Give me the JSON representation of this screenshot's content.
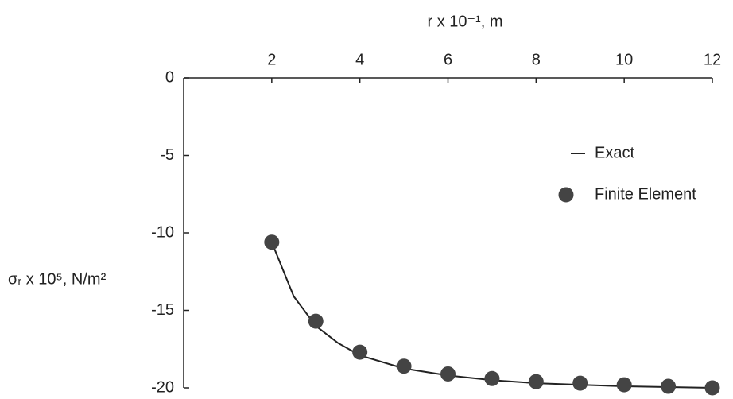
{
  "chart_data": {
    "type": "line",
    "x_label": "r x 10⁻¹, m",
    "y_label": "σᵣ x 10⁵, N/m²",
    "xlim": [
      0,
      12
    ],
    "xticks": [
      2,
      4,
      6,
      8,
      10,
      12
    ],
    "ylim": [
      -20,
      0
    ],
    "yticks": [
      0,
      -5,
      -10,
      -15,
      -20
    ],
    "series": [
      {
        "name": "Exact",
        "color": "#222222",
        "style": "line",
        "x": [
          2,
          2.5,
          3,
          3.5,
          4,
          5,
          6,
          7,
          8,
          9,
          10,
          11,
          12
        ],
        "values": [
          -10.6,
          -14.1,
          -16.0,
          -17.1,
          -17.9,
          -18.75,
          -19.2,
          -19.5,
          -19.7,
          -19.8,
          -19.9,
          -19.95,
          -20.0
        ]
      },
      {
        "name": "Finite Element",
        "color": "#444444",
        "style": "points",
        "x": [
          2,
          3,
          4,
          5,
          6,
          7,
          8,
          9,
          10,
          11,
          12
        ],
        "values": [
          -10.6,
          -15.7,
          -17.7,
          -18.6,
          -19.1,
          -19.4,
          -19.6,
          -19.7,
          -19.8,
          -19.9,
          -20.0
        ]
      }
    ]
  }
}
